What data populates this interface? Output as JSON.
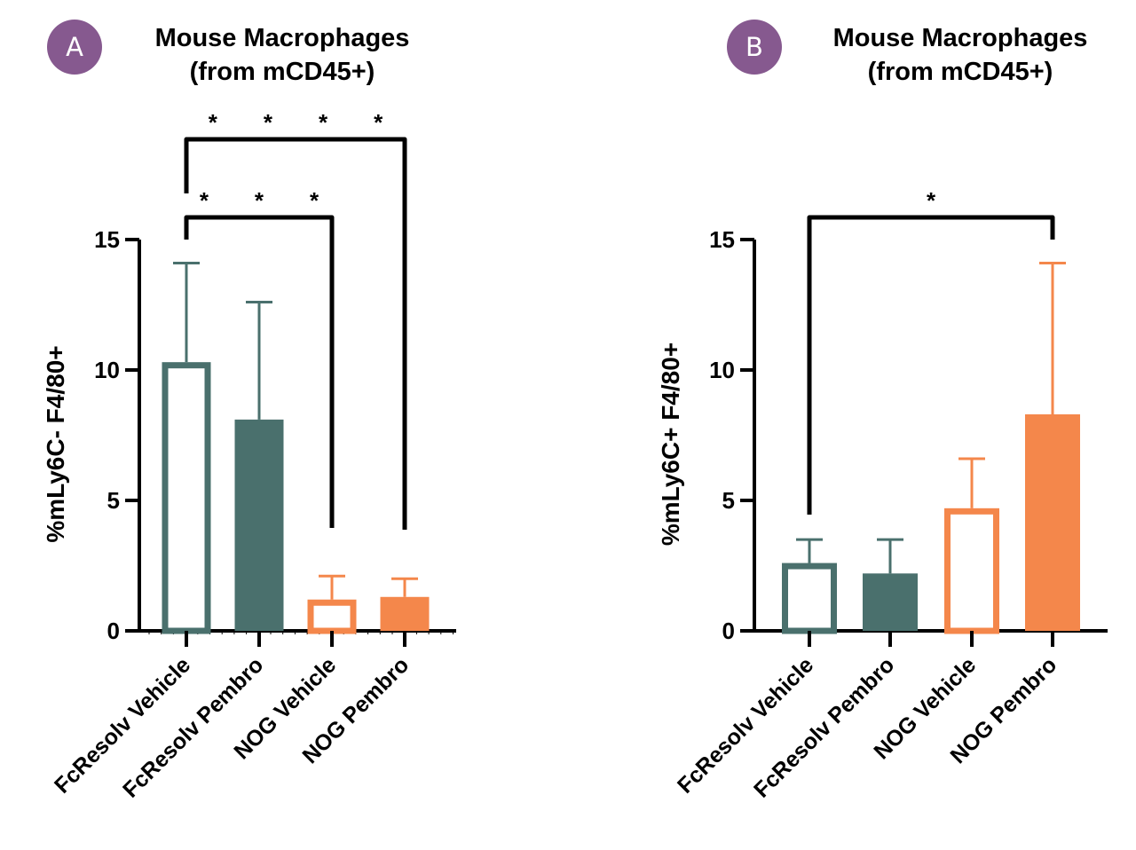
{
  "colors": {
    "teal": "#4a706d",
    "orange": "#f4874b",
    "badge": "#86598f",
    "axis": "#000000"
  },
  "panels": [
    {
      "badge": "A",
      "title_line1": "Mouse Macrophages",
      "title_line2": "(from mCD45+)",
      "y_title": "%mLy6C- F4/80+",
      "y_ticks": [
        "0",
        "5",
        "10",
        "15"
      ],
      "x_labels": [
        "FcResolv Vehicle",
        "FcResolv Pembro",
        "NOG Vehicle",
        "NOG Pembro"
      ],
      "significance": [
        {
          "from": 0,
          "to": 3,
          "label": "* * * *"
        },
        {
          "from": 0,
          "to": 2,
          "label": "* * *"
        }
      ]
    },
    {
      "badge": "B",
      "title_line1": "Mouse Macrophages",
      "title_line2": "(from mCD45+)",
      "y_title": "%mLy6C+ F4/80+",
      "y_ticks": [
        "0",
        "5",
        "10",
        "15"
      ],
      "x_labels": [
        "FcResolv Vehicle",
        "FcResolv Pembro",
        "NOG Vehicle",
        "NOG Pembro"
      ],
      "significance": [
        {
          "from": 0,
          "to": 3,
          "label": "*"
        }
      ]
    }
  ],
  "chart_data": [
    {
      "type": "bar",
      "title": "Mouse Macrophages (from mCD45+)",
      "panel_label": "A",
      "categories": [
        "FcResolv Vehicle",
        "FcResolv Pembro",
        "NOG Vehicle",
        "NOG Pembro"
      ],
      "values": [
        10.3,
        8.1,
        1.2,
        1.3
      ],
      "error_upper": [
        14.1,
        12.6,
        2.1,
        2.0
      ],
      "fill_style": [
        "open",
        "filled",
        "open",
        "filled"
      ],
      "bar_colors": [
        "#4a706d",
        "#4a706d",
        "#f4874b",
        "#f4874b"
      ],
      "xlabel": "",
      "ylabel": "%mLy6C- F4/80+",
      "ylim": [
        0,
        15
      ],
      "yticks": [
        0,
        5,
        10,
        15
      ],
      "grid": false,
      "legend": "none",
      "annotations": [
        {
          "type": "bracket",
          "from": "FcResolv Vehicle",
          "to": "NOG Pembro",
          "text": "****"
        },
        {
          "type": "bracket",
          "from": "FcResolv Vehicle",
          "to": "NOG Vehicle",
          "text": "***"
        }
      ]
    },
    {
      "type": "bar",
      "title": "Mouse Macrophages (from mCD45+)",
      "panel_label": "B",
      "categories": [
        "FcResolv Vehicle",
        "FcResolv Pembro",
        "NOG Vehicle",
        "NOG Pembro"
      ],
      "values": [
        2.6,
        2.2,
        4.7,
        8.3
      ],
      "error_upper": [
        3.5,
        3.5,
        6.6,
        14.1
      ],
      "fill_style": [
        "open",
        "filled",
        "open",
        "filled"
      ],
      "bar_colors": [
        "#4a706d",
        "#4a706d",
        "#f4874b",
        "#f4874b"
      ],
      "xlabel": "",
      "ylabel": "%mLy6C+ F4/80+",
      "ylim": [
        0,
        15
      ],
      "yticks": [
        0,
        5,
        10,
        15
      ],
      "grid": false,
      "legend": "none",
      "annotations": [
        {
          "type": "bracket",
          "from": "FcResolv Vehicle",
          "to": "NOG Pembro",
          "text": "*"
        }
      ]
    }
  ]
}
